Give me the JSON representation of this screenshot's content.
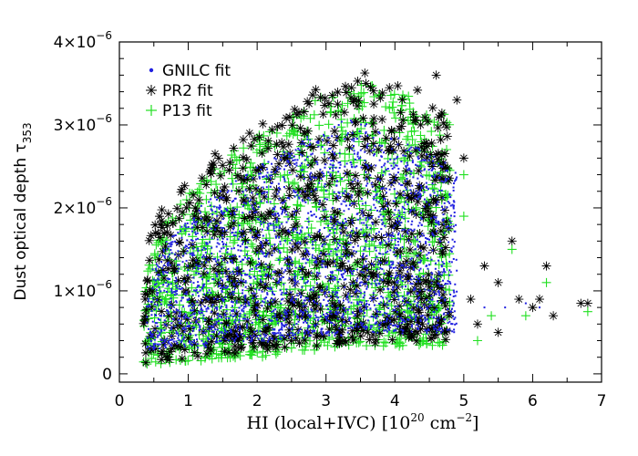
{
  "chart_data": {
    "type": "scatter",
    "title": "",
    "xlabel": "HI (local+IVC) [10",
    "xlabel_exp": "20",
    "xlabel_unit": " cm",
    "xlabel_unit_exp": "−2",
    "xlabel_close": "]",
    "ylabel": "Dust optical depth τ",
    "ylabel_sub": "353",
    "xlim": [
      0,
      7
    ],
    "ylim": [
      -0.1,
      4.0
    ],
    "x_ticks": [
      {
        "value": 0,
        "label": "0"
      },
      {
        "value": 1,
        "label": "1"
      },
      {
        "value": 2,
        "label": "2"
      },
      {
        "value": 3,
        "label": "3"
      },
      {
        "value": 4,
        "label": "4"
      },
      {
        "value": 5,
        "label": "5"
      },
      {
        "value": 6,
        "label": "6"
      },
      {
        "value": 7,
        "label": "7"
      }
    ],
    "y_ticks": [
      {
        "value": 0,
        "label": "0",
        "exp": ""
      },
      {
        "value": 1,
        "label": "1×10",
        "exp": "−6"
      },
      {
        "value": 2,
        "label": "2×10",
        "exp": "−6"
      },
      {
        "value": 3,
        "label": "3×10",
        "exp": "−6"
      },
      {
        "value": 4,
        "label": "4×10",
        "exp": "−6"
      }
    ],
    "y_unit_scale": "1e-6",
    "legend": {
      "position": "top-left"
    },
    "series": [
      {
        "name": "GNILC fit",
        "marker": "dot",
        "color": "#2020e0",
        "cloud": {
          "x_min": 0.4,
          "x_max": 4.9,
          "y_low_start": 0.3,
          "y_low_end": 0.5,
          "y_high_start": 0.9,
          "y_high_end": 3.1,
          "peak_x": 3.4
        }
      },
      {
        "name": "PR2 fit",
        "marker": "asterisk",
        "color": "#000000",
        "cloud": {
          "x_min": 0.35,
          "x_max": 4.8,
          "y_low_start": 0.15,
          "y_low_end": 0.4,
          "y_high_start": 1.3,
          "y_high_end": 3.7,
          "peak_x": 3.6
        }
      },
      {
        "name": "P13 fit",
        "marker": "plus",
        "color": "#22e022",
        "cloud": {
          "x_min": 0.35,
          "x_max": 4.8,
          "y_low_start": 0.1,
          "y_low_end": 0.35,
          "y_high_start": 1.0,
          "y_high_end": 3.6,
          "peak_x": 3.5
        }
      }
    ],
    "outliers": [
      {
        "x": 5.0,
        "y": 2.6,
        "s": 1
      },
      {
        "x": 5.0,
        "y": 2.4,
        "s": 2
      },
      {
        "x": 5.1,
        "y": 0.9,
        "s": 1
      },
      {
        "x": 5.3,
        "y": 1.3,
        "s": 1
      },
      {
        "x": 5.2,
        "y": 0.6,
        "s": 1
      },
      {
        "x": 5.5,
        "y": 1.1,
        "s": 1
      },
      {
        "x": 5.4,
        "y": 0.7,
        "s": 2
      },
      {
        "x": 5.7,
        "y": 1.6,
        "s": 1
      },
      {
        "x": 5.7,
        "y": 1.5,
        "s": 2
      },
      {
        "x": 5.8,
        "y": 0.9,
        "s": 1
      },
      {
        "x": 5.9,
        "y": 0.7,
        "s": 2
      },
      {
        "x": 6.0,
        "y": 0.8,
        "s": 1
      },
      {
        "x": 6.1,
        "y": 0.9,
        "s": 1
      },
      {
        "x": 6.2,
        "y": 1.3,
        "s": 1
      },
      {
        "x": 6.2,
        "y": 1.1,
        "s": 2
      },
      {
        "x": 6.3,
        "y": 0.7,
        "s": 1
      },
      {
        "x": 6.8,
        "y": 0.85,
        "s": 1
      },
      {
        "x": 6.8,
        "y": 0.75,
        "s": 2
      },
      {
        "x": 5.2,
        "y": 0.4,
        "s": 2
      },
      {
        "x": 5.5,
        "y": 0.5,
        "s": 1
      },
      {
        "x": 4.9,
        "y": 3.3,
        "s": 1
      },
      {
        "x": 4.6,
        "y": 3.6,
        "s": 1
      },
      {
        "x": 5.0,
        "y": 1.9,
        "s": 2
      },
      {
        "x": 5.6,
        "y": 0.8,
        "s": 0
      },
      {
        "x": 6.1,
        "y": 0.8,
        "s": 0
      },
      {
        "x": 5.9,
        "y": 0.85,
        "s": 0
      },
      {
        "x": 5.3,
        "y": 0.8,
        "s": 0
      },
      {
        "x": 6.7,
        "y": 0.85,
        "s": 1
      }
    ]
  }
}
